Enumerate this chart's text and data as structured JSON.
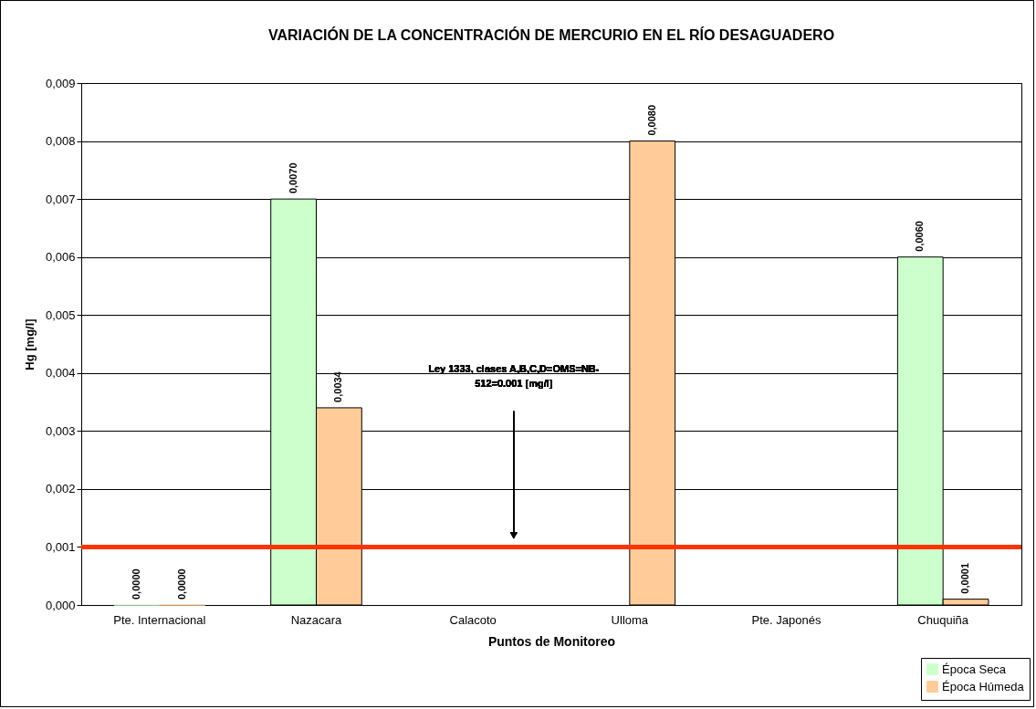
{
  "chart_data": {
    "type": "bar",
    "title": "VARIACIÓN DE LA CONCENTRACIÓN DE  MERCURIO EN EL RÍO DESAGUADERO",
    "xlabel": "Puntos de Monitoreo",
    "ylabel": "Hg [mg/l]",
    "categories": [
      "Pte. Internacional",
      "Nazacara",
      "Calacoto",
      "Ulloma",
      "Pte. Japonés",
      "Chuquiña"
    ],
    "series": [
      {
        "name": "Época Seca",
        "color": "#ccffcc",
        "values": [
          0,
          0.007,
          null,
          null,
          null,
          0.006
        ],
        "value_labels": [
          "0,0000",
          "0,0070",
          null,
          null,
          null,
          "0,0060"
        ]
      },
      {
        "name": "Época Húmeda",
        "color": "#ffcc99",
        "values": [
          0,
          0.0034,
          null,
          0.008,
          null,
          0.0001
        ],
        "value_labels": [
          "0,0000",
          "0,0034",
          null,
          "0,0080",
          null,
          "0,0001"
        ]
      }
    ],
    "ylim": [
      0,
      0.009
    ],
    "yticks": [
      {
        "value": 0,
        "label": "0,000"
      },
      {
        "value": 0.001,
        "label": "0,001"
      },
      {
        "value": 0.002,
        "label": "0,002"
      },
      {
        "value": 0.003,
        "label": "0,003"
      },
      {
        "value": 0.004,
        "label": "0,004"
      },
      {
        "value": 0.005,
        "label": "0,005"
      },
      {
        "value": 0.006,
        "label": "0,006"
      },
      {
        "value": 0.007,
        "label": "0,007"
      },
      {
        "value": 0.008,
        "label": "0,008"
      },
      {
        "value": 0.009,
        "label": "0,009"
      }
    ],
    "grid": "y",
    "legend": "bottom right",
    "annotations": [
      "Ley 1333, clases A,B,C,D=OMS=NB-512=0.001 [mg/l]"
    ],
    "ref_lines": [
      {
        "axis": "y",
        "value": 0.001,
        "color": "#ff3300"
      }
    ]
  }
}
